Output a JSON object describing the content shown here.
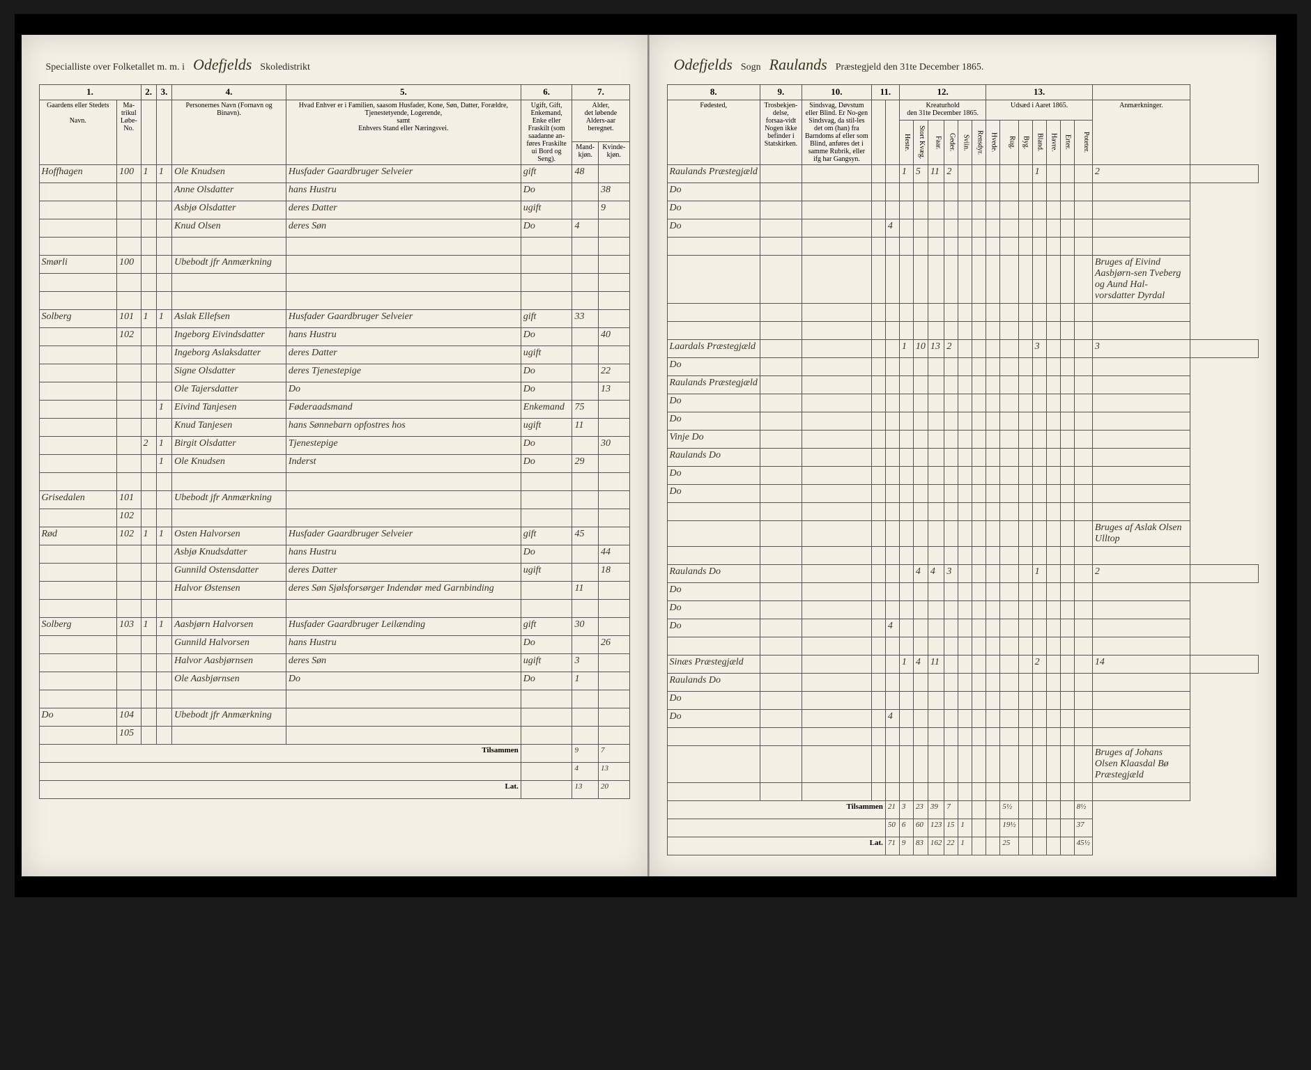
{
  "header": {
    "left_printed1": "Specialliste over Folketallet m. m. i",
    "district": "Odefjelds",
    "left_printed2": "Skoledistrikt",
    "sogn": "Odefjelds",
    "right_printed1": "Sogn",
    "parish": "Raulands",
    "right_printed2": "Præstegjeld den 31te December 1865."
  },
  "left_cols": {
    "c1": "1.",
    "c2": "2.",
    "c3": "3.",
    "c4": "4.",
    "c5": "5.",
    "c6": "6.",
    "c7": "7.",
    "h1": "Gaardens eller Stedets",
    "h1b": "Navn.",
    "h2": "Ma-trikul Løbe-No.",
    "h3a": "",
    "h3b": "",
    "h4": "Personernes Navn (Fornavn og Binavn).",
    "h5": "Hvad Enhver er i Familien, saasom Husfader, Kone, Søn, Datter, Forældre, Tjenestetyende, Logerende,",
    "h5b": "samt",
    "h5c": "Enhvers Stand eller Næringsvei.",
    "h6": "Ugift, Gift, Enkemand, Enke eller Fraskilt (som saadanne an-føres Fraskilte ui Bord og Seng).",
    "h7": "Alder,",
    "h7b": "det løbende Alders-aar beregnet.",
    "h7c": "Mand-kjøn.",
    "h7d": "Kvinde-kjøn."
  },
  "right_cols": {
    "c8": "8.",
    "c9": "9.",
    "c10": "10.",
    "c11": "11.",
    "c12": "12.",
    "c13": "13.",
    "h8": "Fødested,",
    "h9": "Trosbekjen-delse, forsaa-vidt Nogen ikke befinder i Statskirken.",
    "h10": "Sindsvag, Døvstum eller Blind. Er No-gen Sindsvag, da stil-les det om (han) fra Barndoms af eller som Blind, anføres det i samme Rubrik, eller ifg har Gangsyn.",
    "h11a": "",
    "h11b": "",
    "h12": "den 31te December 1865.",
    "h12sub": "Kreaturhold",
    "h13": "Udsæd i Aaret 1865.",
    "h_anm": "Anmærkninger."
  },
  "livestock_cols": [
    "Heste.",
    "Stort Kvæg.",
    "Faar.",
    "Geder.",
    "Sviin.",
    "Rensdyr."
  ],
  "seed_cols": [
    "Hvede.",
    "Rug.",
    "Byg.",
    "Bland.",
    "Havre.",
    "Erter.",
    "Poteter."
  ],
  "rows": [
    {
      "place": "Hoffhagen",
      "mat": "100",
      "h": "1",
      "p": "1",
      "name": "Ole Knudsen",
      "rel": "Husfader Gaardbruger Selveier",
      "civ": "gift",
      "m": "48",
      "f": "",
      "birth": "Raulands Præstegjæld",
      "livestock": [
        "1",
        "5",
        "11",
        "2",
        "",
        "",
        ""
      ],
      "seed": [
        "",
        "",
        "1",
        "",
        "",
        "",
        "2"
      ]
    },
    {
      "place": "",
      "mat": "",
      "h": "",
      "p": "",
      "name": "Anne Olsdatter",
      "rel": "hans Hustru",
      "civ": "Do",
      "m": "",
      "f": "38",
      "birth": "Do"
    },
    {
      "place": "",
      "mat": "",
      "h": "",
      "p": "",
      "name": "Asbjø Olsdatter",
      "rel": "deres Datter",
      "civ": "ugift",
      "m": "",
      "f": "9",
      "birth": "Do"
    },
    {
      "place": "",
      "mat": "",
      "h": "",
      "p": "",
      "name": "Knud Olsen",
      "rel": "deres Søn",
      "civ": "Do",
      "m": "4",
      "f": "",
      "birth": "Do",
      "c11": "4"
    },
    {
      "blank": true
    },
    {
      "place": "Smørli",
      "mat": "100",
      "h": "",
      "p": "",
      "name": "Ubebodt jfr Anmærkning",
      "rel": "",
      "civ": "",
      "m": "",
      "f": "",
      "anm": "Bruges af Eivind Aasbjørn-sen Tveberg og Aund Hal-vorsdatter Dyrdal"
    },
    {
      "blank": true
    },
    {
      "blank": true
    },
    {
      "place": "Solberg",
      "mat": "101",
      "h": "1",
      "p": "1",
      "name": "Aslak Ellefsen",
      "rel": "Husfader Gaardbruger Selveier",
      "civ": "gift",
      "m": "33",
      "f": "",
      "birth": "Laardals Præstegjæld",
      "livestock": [
        "1",
        "10",
        "13",
        "2",
        "",
        "",
        ""
      ],
      "seed": [
        "",
        "",
        "3",
        "",
        "",
        "",
        "3"
      ]
    },
    {
      "place": "",
      "mat": "102",
      "h": "",
      "p": "",
      "name": "Ingeborg Eivindsdatter",
      "rel": "hans Hustru",
      "civ": "Do",
      "m": "",
      "f": "40",
      "birth": "Do"
    },
    {
      "place": "",
      "mat": "",
      "h": "",
      "p": "",
      "name": "Ingeborg Aslaksdatter",
      "rel": "deres Datter",
      "civ": "ugift",
      "m": "",
      "f": "",
      "birth": "Raulands Præstegjæld"
    },
    {
      "place": "",
      "mat": "",
      "h": "",
      "p": "",
      "name": "Signe Olsdatter",
      "rel": "deres Tjenestepige",
      "civ": "Do",
      "m": "",
      "f": "22",
      "birth": "Do"
    },
    {
      "place": "",
      "mat": "",
      "h": "",
      "p": "",
      "name": "Ole Tajersdatter",
      "rel": "Do",
      "civ": "Do",
      "m": "",
      "f": "13",
      "birth": "Do"
    },
    {
      "place": "",
      "mat": "",
      "h": "",
      "p": "1",
      "name": "Eivind Tanjesen",
      "rel": "Føderaadsmand",
      "civ": "Enkemand",
      "m": "75",
      "f": "",
      "birth": "Vinje Do"
    },
    {
      "place": "",
      "mat": "",
      "h": "",
      "p": "",
      "name": "Knud Tanjesen",
      "rel": "hans Sønnebarn opfostres hos",
      "civ": "ugift",
      "m": "11",
      "f": "",
      "birth": "Raulands Do"
    },
    {
      "place": "",
      "mat": "",
      "h": "2",
      "p": "1",
      "name": "Birgit Olsdatter",
      "rel": "Tjenestepige",
      "civ": "Do",
      "m": "",
      "f": "30",
      "birth": "Do"
    },
    {
      "place": "",
      "mat": "",
      "h": "",
      "p": "1",
      "name": "Ole Knudsen",
      "rel": "Inderst",
      "civ": "Do",
      "m": "29",
      "f": "",
      "birth": "Do"
    },
    {
      "blank": true
    },
    {
      "place": "Grisedalen",
      "mat": "101",
      "h": "",
      "p": "",
      "name": "Ubebodt jfr Anmærkning",
      "rel": "",
      "civ": "",
      "m": "",
      "f": "",
      "anm": "Bruges af Aslak Olsen Ulltop"
    },
    {
      "place": "",
      "mat": "102",
      "h": "",
      "p": "",
      "name": "",
      "rel": "",
      "civ": "",
      "m": "",
      "f": ""
    },
    {
      "place": "Rød",
      "mat": "102",
      "h": "1",
      "p": "1",
      "name": "Osten Halvorsen",
      "rel": "Husfader Gaardbruger Selveier",
      "civ": "gift",
      "m": "45",
      "f": "",
      "birth": "Raulands Do",
      "livestock": [
        "",
        "4",
        "4",
        "3",
        "",
        "",
        ""
      ],
      "seed": [
        "",
        "",
        "1",
        "",
        "",
        "",
        "2"
      ]
    },
    {
      "place": "",
      "mat": "",
      "h": "",
      "p": "",
      "name": "Asbjø Knudsdatter",
      "rel": "hans Hustru",
      "civ": "Do",
      "m": "",
      "f": "44",
      "birth": "Do"
    },
    {
      "place": "",
      "mat": "",
      "h": "",
      "p": "",
      "name": "Gunnild Ostensdatter",
      "rel": "deres Datter",
      "civ": "ugift",
      "m": "",
      "f": "18",
      "birth": "Do"
    },
    {
      "place": "",
      "mat": "",
      "h": "",
      "p": "",
      "name": "Halvor Østensen",
      "rel": "deres Søn Sjølsforsørger Indendør med Garnbinding",
      "civ": "",
      "m": "11",
      "f": "",
      "birth": "Do",
      "c11": "4"
    },
    {
      "blank": true
    },
    {
      "place": "Solberg",
      "mat": "103",
      "h": "1",
      "p": "1",
      "name": "Aasbjørn Halvorsen",
      "rel": "Husfader Gaardbruger Leilænding",
      "civ": "gift",
      "m": "30",
      "f": "",
      "birth": "Sinæs Præstegjæld",
      "livestock": [
        "1",
        "4",
        "11",
        "",
        "",
        "",
        ""
      ],
      "seed": [
        "",
        "",
        "2",
        "",
        "",
        "",
        "14"
      ]
    },
    {
      "place": "",
      "mat": "",
      "h": "",
      "p": "",
      "name": "Gunnild Halvorsen",
      "rel": "hans Hustru",
      "civ": "Do",
      "m": "",
      "f": "26",
      "birth": "Raulands Do"
    },
    {
      "place": "",
      "mat": "",
      "h": "",
      "p": "",
      "name": "Halvor Aasbjørnsen",
      "rel": "deres Søn",
      "civ": "ugift",
      "m": "3",
      "f": "",
      "birth": "Do"
    },
    {
      "place": "",
      "mat": "",
      "h": "",
      "p": "",
      "name": "Ole Aasbjørnsen",
      "rel": "Do",
      "civ": "Do",
      "m": "1",
      "f": "",
      "birth": "Do",
      "c11": "4"
    },
    {
      "blank": true
    },
    {
      "place": "Do",
      "mat": "104",
      "h": "",
      "p": "",
      "name": "Ubebodt jfr Anmærkning",
      "rel": "",
      "civ": "",
      "m": "",
      "f": "",
      "anm": "Bruges af Johans Olsen Klaasdal Bø Præstegjæld"
    },
    {
      "place": "",
      "mat": "105",
      "h": "",
      "p": "",
      "name": "",
      "rel": "",
      "civ": "",
      "m": "",
      "f": ""
    }
  ],
  "footer": {
    "label_left": "Tilsammen",
    "label_lat": "Lat.",
    "l_m1": "9",
    "l_f1": "7",
    "l_m2": "4",
    "l_f2": "13",
    "l_m3": "13",
    "l_f3": "20",
    "label_right": "Tilsammen",
    "r1": [
      "21",
      "3",
      "23",
      "39",
      "7",
      "",
      "",
      "",
      "5½",
      "",
      "",
      "",
      "",
      "8½"
    ],
    "r2": [
      "50",
      "6",
      "60",
      "123",
      "15",
      "1",
      "",
      "",
      "19½",
      "",
      "",
      "",
      "",
      "37"
    ],
    "r3": [
      "71",
      "9",
      "83",
      "162",
      "22",
      "1",
      "",
      "",
      "25",
      "",
      "",
      "",
      "",
      "45½"
    ]
  }
}
